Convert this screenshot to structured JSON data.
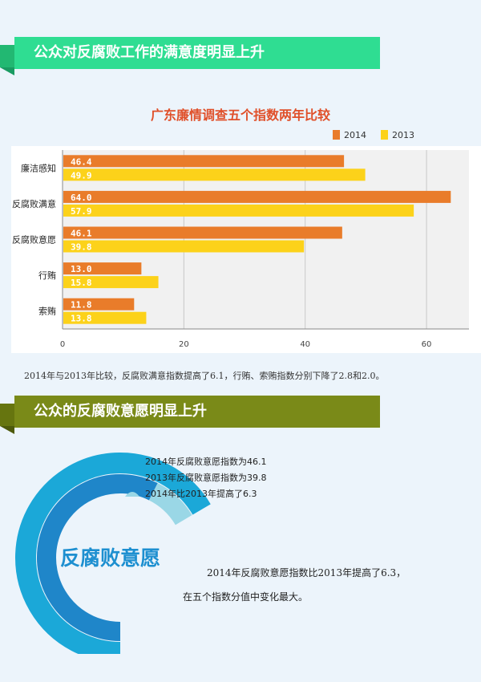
{
  "section1": {
    "heading": "公众对反腐败工作的满意度明显上升"
  },
  "chart_data": {
    "type": "bar",
    "orientation": "horizontal",
    "title": "广东廉情调查五个指数两年比较",
    "categories": [
      "廉洁感知",
      "反腐败满意",
      "反腐败意愿",
      "行贿",
      "索贿"
    ],
    "series": [
      {
        "name": "2014",
        "color": "#e97c2a",
        "values": [
          46.4,
          64.0,
          46.1,
          13.0,
          11.8
        ]
      },
      {
        "name": "2013",
        "color": "#fcd21a",
        "values": [
          49.9,
          57.9,
          39.8,
          15.8,
          13.8
        ]
      }
    ],
    "value_labels": [
      [
        "46.4",
        "64.0",
        "46.1",
        "13.0",
        "11.8"
      ],
      [
        "49.9",
        "57.9",
        "39.8",
        "15.8",
        "13.8"
      ]
    ],
    "xticks": [
      "0",
      "20",
      "40",
      "60"
    ],
    "xlim": [
      0,
      67
    ],
    "grid": true,
    "legend_position": "top-right"
  },
  "caption1": "2014年与2013年比较，反腐败满意指数提高了6.1，行贿、索贿指数分别下降了2.8和2.0。",
  "section2": {
    "heading": "公众的反腐败意愿明显上升",
    "legend": [
      {
        "text": "2014年反腐败意愿指数为46.1",
        "color": "#1ba8d8"
      },
      {
        "text": "2013年反腐败意愿指数为39.8",
        "color": "#1f86c9"
      },
      {
        "text": "2014年比2013年提高了6.3",
        "color": "#9ad7e6"
      }
    ],
    "ring_title": "反腐败意愿",
    "ring_values": {
      "outer": 46.1,
      "inner": 39.8,
      "diff": 6.3
    },
    "desc_line1": "2014年反腐败意愿指数比2013年提高了6.3，",
    "desc_line2": "在五个指数分值中变化最大。"
  }
}
